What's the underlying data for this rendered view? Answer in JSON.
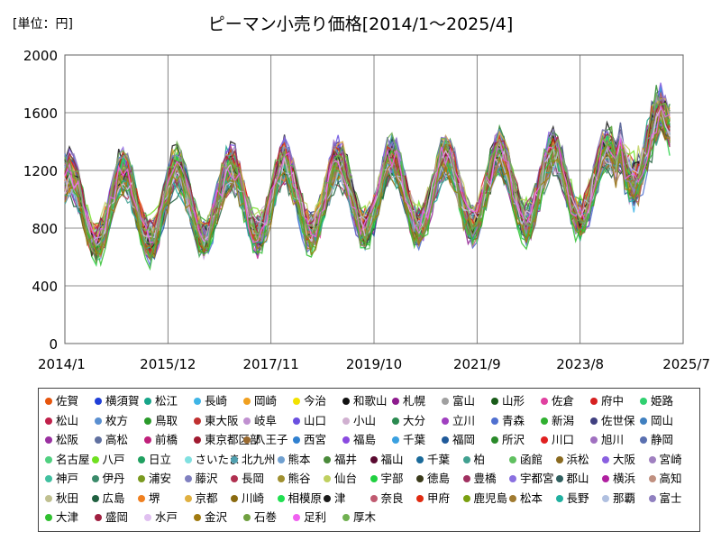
{
  "chart_data": {
    "type": "line",
    "title": "ピーマン小売り価格[2014/1～2025/4]",
    "unit_label": "[単位：円]",
    "x_ticks": [
      "2014/1",
      "2015/12",
      "2017/11",
      "2019/10",
      "2021/9",
      "2023/8",
      "2025/7"
    ],
    "y_ticks": [
      "0",
      "400",
      "800",
      "1200",
      "1600",
      "2000"
    ],
    "ylim": [
      0,
      2000
    ],
    "grid": true,
    "legend_position": "bottom",
    "series": [
      {
        "name": "佐賀",
        "color": "#e6550d"
      },
      {
        "name": "横須賀",
        "color": "#1f3fd8"
      },
      {
        "name": "松江",
        "color": "#17a589"
      },
      {
        "name": "長崎",
        "color": "#3fb5e6"
      },
      {
        "name": "岡崎",
        "color": "#f0a020"
      },
      {
        "name": "今治",
        "color": "#f2e200"
      },
      {
        "name": "和歌山",
        "color": "#111111"
      },
      {
        "name": "札幌",
        "color": "#8e1b8e"
      },
      {
        "name": "富山",
        "color": "#a0a0a0"
      },
      {
        "name": "山形",
        "color": "#1a5c1a"
      },
      {
        "name": "佐倉",
        "color": "#e040a0"
      },
      {
        "name": "府中",
        "color": "#d62020"
      },
      {
        "name": "姫路",
        "color": "#30d070"
      },
      {
        "name": "松山",
        "color": "#c0204a"
      },
      {
        "name": "枚方",
        "color": "#5a8fd0"
      },
      {
        "name": "鳥取",
        "color": "#2a9a2a"
      },
      {
        "name": "東大阪",
        "color": "#c03030"
      },
      {
        "name": "岐阜",
        "color": "#c090d0"
      },
      {
        "name": "山口",
        "color": "#6a50e0"
      },
      {
        "name": "小山",
        "color": "#d0b0d0"
      },
      {
        "name": "大分",
        "color": "#2a8a50"
      },
      {
        "name": "立川",
        "color": "#a040c0"
      },
      {
        "name": "青森",
        "color": "#5070d0"
      },
      {
        "name": "新潟",
        "color": "#30b030"
      },
      {
        "name": "佐世保",
        "color": "#404080"
      },
      {
        "name": "岡山",
        "color": "#4080c0"
      },
      {
        "name": "松阪",
        "color": "#9a30a0"
      },
      {
        "name": "高松",
        "color": "#6070a0"
      },
      {
        "name": "前橋",
        "color": "#c0207a"
      },
      {
        "name": "東京都区部",
        "color": "#a01a30"
      },
      {
        "name": "八王子",
        "color": "#9a6a30"
      },
      {
        "name": "西宮",
        "color": "#3080d0"
      },
      {
        "name": "福島",
        "color": "#8a4ae0"
      },
      {
        "name": "千葉",
        "color": "#3aa0e0"
      },
      {
        "name": "福岡",
        "color": "#205a9a"
      },
      {
        "name": "所沢",
        "color": "#2a8a2a"
      },
      {
        "name": "川口",
        "color": "#e02020"
      },
      {
        "name": "旭川",
        "color": "#a070c0"
      },
      {
        "name": "静岡",
        "color": "#5a70b0"
      },
      {
        "name": "名古屋",
        "color": "#50d080"
      },
      {
        "name": "八戸",
        "color": "#70e020"
      },
      {
        "name": "日立",
        "color": "#20a060"
      },
      {
        "name": "さいたま",
        "color": "#80e0e0"
      },
      {
        "name": "北九州",
        "color": "#50a0b0"
      },
      {
        "name": "熊本",
        "color": "#70a0d0"
      },
      {
        "name": "福井",
        "color": "#4a8a3a"
      },
      {
        "name": "福山",
        "color": "#5a0a30"
      },
      {
        "name": "千葉",
        "color": "#1a6a9a"
      },
      {
        "name": "柏",
        "color": "#40a090"
      },
      {
        "name": "函館",
        "color": "#60c060"
      },
      {
        "name": "浜松",
        "color": "#8a6a20"
      },
      {
        "name": "大阪",
        "color": "#8a60e0"
      },
      {
        "name": "宮崎",
        "color": "#a080c0"
      },
      {
        "name": "神戸",
        "color": "#40c0a0"
      },
      {
        "name": "伊丹",
        "color": "#3a8a6a"
      },
      {
        "name": "浦安",
        "color": "#7a9a20"
      },
      {
        "name": "藤沢",
        "color": "#8080c0"
      },
      {
        "name": "長岡",
        "color": "#b03050"
      },
      {
        "name": "熊谷",
        "color": "#a09030"
      },
      {
        "name": "仙台",
        "color": "#c0d060"
      },
      {
        "name": "宇部",
        "color": "#20d040"
      },
      {
        "name": "徳島",
        "color": "#3a3a1a"
      },
      {
        "name": "豊橋",
        "color": "#a03060"
      },
      {
        "name": "宇都宮",
        "color": "#8a70e0"
      },
      {
        "name": "郡山",
        "color": "#306060"
      },
      {
        "name": "横浜",
        "color": "#b020a0"
      },
      {
        "name": "高知",
        "color": "#c09080"
      },
      {
        "name": "秋田",
        "color": "#c0c090"
      },
      {
        "name": "広島",
        "color": "#206040"
      },
      {
        "name": "堺",
        "color": "#f08020"
      },
      {
        "name": "京都",
        "color": "#e0b040"
      },
      {
        "name": "川崎",
        "color": "#8a6a10"
      },
      {
        "name": "相模原",
        "color": "#20e050"
      },
      {
        "name": "津",
        "color": "#1a1a1a"
      },
      {
        "name": "奈良",
        "color": "#c05a70"
      },
      {
        "name": "甲府",
        "color": "#e02a10"
      },
      {
        "name": "鹿児島",
        "color": "#7aa010"
      },
      {
        "name": "松本",
        "color": "#a07a30"
      },
      {
        "name": "長野",
        "color": "#20b0a0"
      },
      {
        "name": "那覇",
        "color": "#b0c0e0"
      },
      {
        "name": "富士",
        "color": "#9080c0"
      },
      {
        "name": "大津",
        "color": "#30c030"
      },
      {
        "name": "盛岡",
        "color": "#a02040"
      },
      {
        "name": "水戸",
        "color": "#e0c0f0"
      },
      {
        "name": "金沢",
        "color": "#a07a10"
      },
      {
        "name": "石巻",
        "color": "#70a040"
      },
      {
        "name": "足利",
        "color": "#f060f0"
      },
      {
        "name": "厚木",
        "color": "#70b050"
      }
    ]
  }
}
